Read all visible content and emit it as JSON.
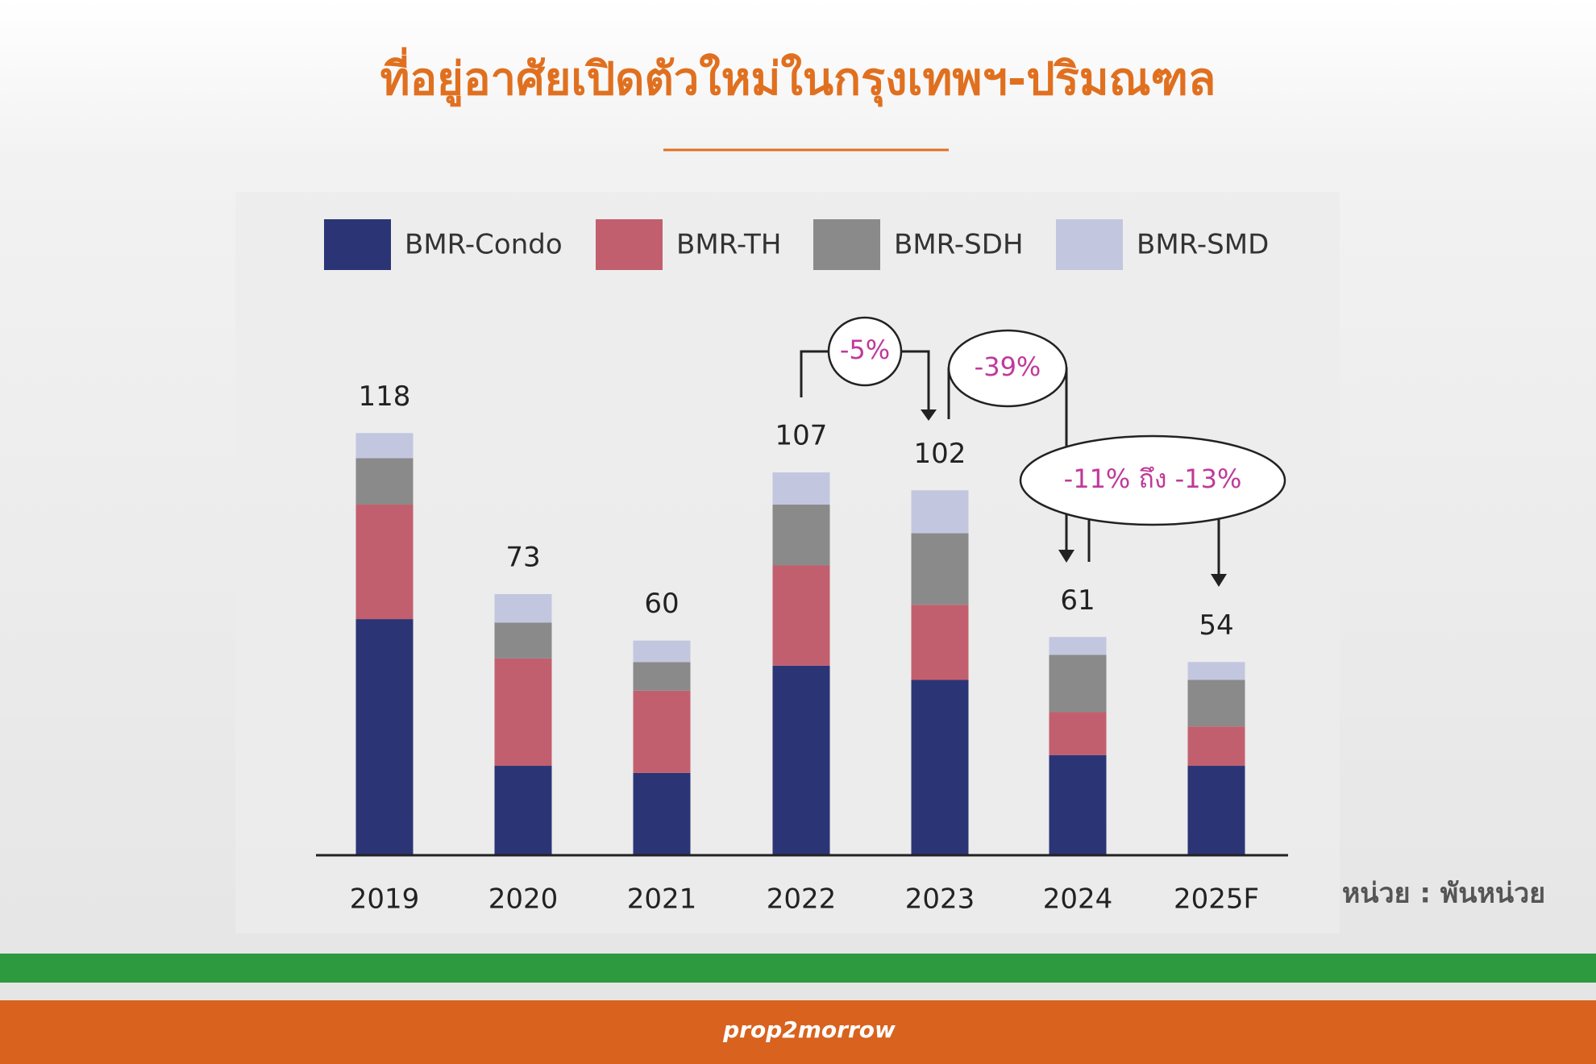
{
  "chart_data": {
    "type": "stacked-bar",
    "title": "ที่อยู่อาศัยเปิดตัวใหม่ในกรุงเทพฯ-ปริมณฑล",
    "categories": [
      "2019",
      "2020",
      "2021",
      "2022",
      "2023",
      "2024",
      "2025F"
    ],
    "series": [
      {
        "name": "BMR-Condo",
        "color": "#2b3575",
        "values": [
          66,
          25,
          23,
          53,
          49,
          28,
          25
        ]
      },
      {
        "name": "BMR-TH",
        "color": "#c25f6e",
        "values": [
          32,
          30,
          23,
          28,
          21,
          12,
          11
        ]
      },
      {
        "name": "BMR-SDH",
        "color": "#8a8a8a",
        "values": [
          13,
          10,
          8,
          17,
          20,
          16,
          13
        ]
      },
      {
        "name": "BMR-SMD",
        "color": "#c3c6df",
        "values": [
          7,
          8,
          6,
          9,
          12,
          5,
          5
        ]
      }
    ],
    "totals": [
      118,
      73,
      60,
      107,
      102,
      61,
      54
    ],
    "ylim": [
      0,
      130
    ],
    "annotations": [
      "-5%",
      "-39%",
      "-11% ถึง -13%"
    ],
    "unit_note": "หน่วย : พันหน่วย",
    "logo": "prop2morrow"
  }
}
